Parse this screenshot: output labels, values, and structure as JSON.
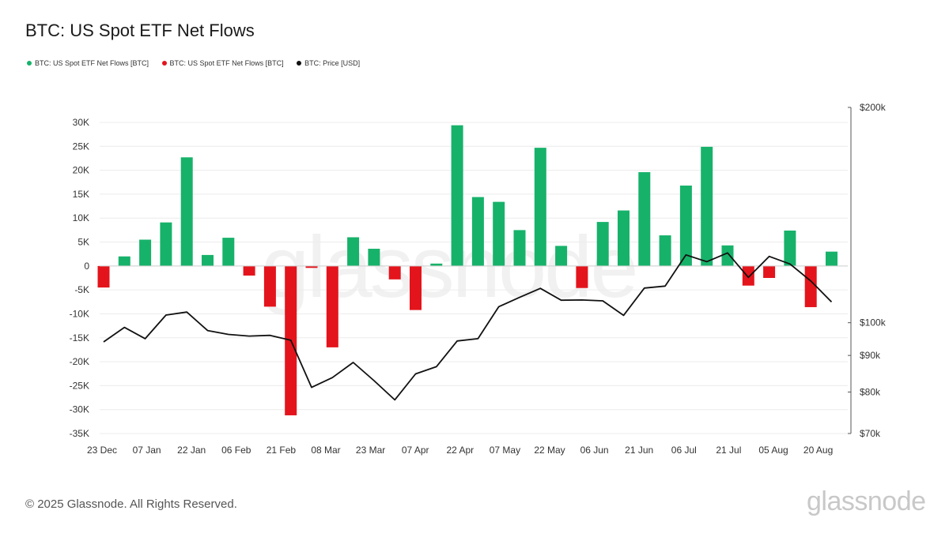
{
  "page": {
    "title": "BTC: US Spot ETF Net Flows",
    "footer": "© 2025 Glassnode. All Rights Reserved.",
    "logo_text": "glassnode",
    "watermark_text": "glassnode"
  },
  "colors": {
    "positive": "#17b26a",
    "negative": "#e4141c",
    "price": "#111111",
    "grid": "#ececec",
    "axis_text": "#333333"
  },
  "chart_data": {
    "type": "bar",
    "title": "BTC: US Spot ETF Net Flows",
    "legend": [
      {
        "label": "BTC: US Spot ETF Net Flows [BTC]",
        "color": "#17b26a"
      },
      {
        "label": "BTC: US Spot ETF Net Flows [BTC]",
        "color": "#e4141c"
      },
      {
        "label": "BTC: Price [USD]",
        "color": "#111111"
      }
    ],
    "legend_position": "top-left",
    "grid": true,
    "x_tick_labels": [
      "23 Dec",
      "07 Jan",
      "22 Jan",
      "06 Feb",
      "21 Feb",
      "08 Mar",
      "23 Mar",
      "07 Apr",
      "22 Apr",
      "07 May",
      "22 May",
      "06 Jun",
      "21 Jun",
      "06 Jul",
      "21 Jul",
      "05 Aug",
      "20 Aug"
    ],
    "y_left": {
      "ylim": [
        -35000,
        30000
      ],
      "ticks": [
        30000,
        25000,
        20000,
        15000,
        10000,
        5000,
        0,
        -5000,
        -10000,
        -15000,
        -20000,
        -25000,
        -30000,
        -35000
      ],
      "tick_labels": [
        "30K",
        "25K",
        "20K",
        "15K",
        "10K",
        "5K",
        "0",
        "-5K",
        "-10K",
        "-15K",
        "-20K",
        "-25K",
        "-30K",
        "-35K"
      ]
    },
    "y_right": {
      "scale": "log",
      "ticks": [
        200000,
        100000,
        90000,
        80000,
        70000
      ],
      "tick_labels": [
        "$200k",
        "$100k",
        "$90k",
        "$80k",
        "$70k"
      ]
    },
    "flow_series": {
      "name": "BTC: US Spot ETF Net Flows [BTC]",
      "values": [
        -4500,
        2000,
        5500,
        9100,
        22700,
        2300,
        5900,
        -2000,
        -8500,
        -31200,
        -400,
        -17000,
        6000,
        3600,
        -2800,
        -9200,
        500,
        29400,
        14400,
        13400,
        7500,
        24700,
        4200,
        -4600,
        9200,
        11600,
        19600,
        6400,
        16800,
        24900,
        4300,
        -4100,
        -2500,
        7400,
        -8600,
        3000
      ]
    },
    "price_series": {
      "name": "BTC: Price [USD]",
      "values": [
        94000,
        98500,
        95000,
        102500,
        103500,
        97500,
        96300,
        95800,
        96000,
        94500,
        81200,
        83800,
        88000,
        83000,
        78000,
        84800,
        86800,
        94300,
        95000,
        105300,
        108500,
        111700,
        107500,
        107600,
        107300,
        102400,
        111800,
        112500,
        124400,
        121700,
        125200,
        115700,
        123800,
        120800,
        114400,
        106900
      ]
    }
  }
}
